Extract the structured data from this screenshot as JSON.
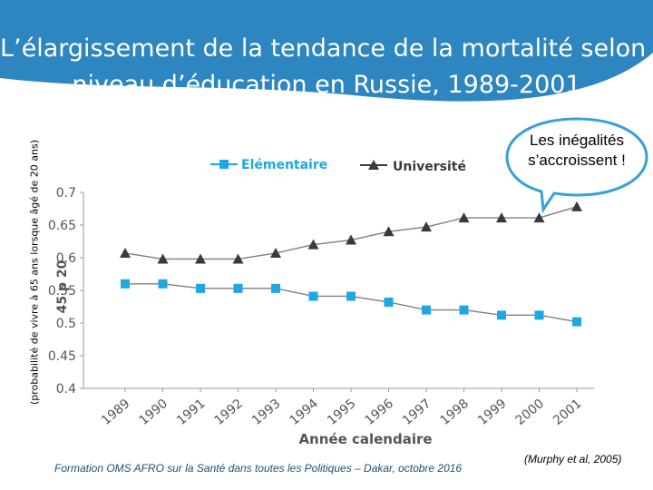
{
  "title": {
    "line1": "L’élargissement de la tendance de la mortalité selon le",
    "line2": "niveau d’éducation en Russie, 1989-2001"
  },
  "side_label": "(probabilité de vivre à 65 ans lorsque âgé de 20 ans)",
  "callout": {
    "line1": "Les inégalités",
    "line2": "s’accroissent !"
  },
  "footer": {
    "source": "Formation OMS AFRO sur la Santé dans toutes les Politiques – Dakar, octobre 2016",
    "citation": "(Murphy et al, 2005)"
  },
  "colors": {
    "title_band": "#2e86c1",
    "bubble_border": "#3aa0d8",
    "elementaire": "#1ea7e1",
    "universite": "#3a3a3a",
    "axis_text": "#555555",
    "legend_elementaire": "#1ea7e1",
    "legend_universite": "#3a3a3a"
  },
  "chart_data": {
    "type": "line",
    "title": "",
    "xlabel": "Année calendaire",
    "ylabel": "45 p 20",
    "categories": [
      "1989",
      "1990",
      "1991",
      "1992",
      "1993",
      "1994",
      "1995",
      "1996",
      "1997",
      "1998",
      "1999",
      "2000",
      "2001"
    ],
    "ylim": [
      0.4,
      0.7
    ],
    "yticks": [
      "0.4",
      "0.45",
      "0.5",
      "0.55",
      "0.6",
      "0.65",
      "0.7"
    ],
    "grid": false,
    "legend_position": "top",
    "series": [
      {
        "name": "Elémentaire",
        "marker": "square",
        "values": [
          0.56,
          0.56,
          0.553,
          0.553,
          0.553,
          0.541,
          0.541,
          0.532,
          0.52,
          0.52,
          0.512,
          0.512,
          0.502
        ]
      },
      {
        "name": "Université",
        "marker": "triangle",
        "values": [
          0.607,
          0.598,
          0.598,
          0.598,
          0.607,
          0.62,
          0.627,
          0.64,
          0.647,
          0.661,
          0.661,
          0.661,
          0.678
        ]
      }
    ]
  }
}
